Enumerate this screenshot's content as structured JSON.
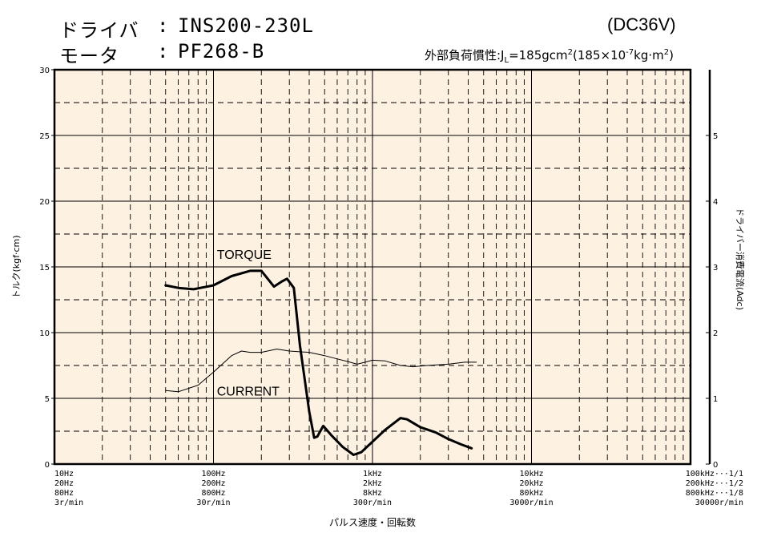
{
  "header": {
    "driver_label": "ドライバ",
    "driver_value": "INS200-230L",
    "motor_label": "モータ",
    "motor_value": "PF268-B",
    "sep": ":",
    "voltage": "(DC36V)",
    "inertia_prefix": "外部負荷慣性:J",
    "inertia_sub": "L",
    "inertia_mid": "=185gcm",
    "inertia_sup1": "2",
    "inertia_paren": "(185×10",
    "inertia_sup2": "-7",
    "inertia_end": "kg·m",
    "inertia_sup3": "2",
    "inertia_close": ")"
  },
  "chart_data": {
    "type": "line",
    "x_scale": "log",
    "xlim": [
      10,
      100000
    ],
    "ylim": [
      0,
      30
    ],
    "y2lim": [
      0,
      6
    ],
    "ylabel": "トルク(kgf·cm)",
    "y2label": "ドライバー消費電流(Adc)",
    "xlabel": "パルス速度・回転数",
    "y_ticks": [
      "0",
      "5",
      "10",
      "15",
      "20",
      "25",
      "30"
    ],
    "y2_ticks": [
      "0",
      "1",
      "2",
      "3",
      "4",
      "5"
    ],
    "x_tick_labels": [
      {
        "x": 10,
        "lines": [
          "10Hz",
          "20Hz",
          "80Hz",
          "3r/min"
        ],
        "align": "start"
      },
      {
        "x": 100,
        "lines": [
          "100Hz",
          "200Hz",
          "800Hz",
          "30r/min"
        ],
        "align": "middle"
      },
      {
        "x": 1000,
        "lines": [
          "1kHz",
          "2kHz",
          "8kHz",
          "300r/min"
        ],
        "align": "middle"
      },
      {
        "x": 10000,
        "lines": [
          "10kHz",
          "20kHz",
          "80kHz",
          "3000r/min"
        ],
        "align": "middle"
      },
      {
        "x": 100000,
        "lines": [
          "100kHz···1/1",
          "200kHz···1/2",
          "800kHz···1/8",
          "30000r/min"
        ],
        "align": "end"
      }
    ],
    "series": [
      {
        "name": "TORQUE",
        "axis": "left",
        "points": [
          [
            50,
            13.6
          ],
          [
            60,
            13.4
          ],
          [
            75,
            13.3
          ],
          [
            100,
            13.6
          ],
          [
            130,
            14.3
          ],
          [
            170,
            14.7
          ],
          [
            200,
            14.7
          ],
          [
            240,
            13.5
          ],
          [
            270,
            13.9
          ],
          [
            290,
            14.1
          ],
          [
            320,
            13.4
          ],
          [
            350,
            9.0
          ],
          [
            400,
            4.0
          ],
          [
            430,
            2.0
          ],
          [
            450,
            2.1
          ],
          [
            490,
            2.9
          ],
          [
            550,
            2.2
          ],
          [
            650,
            1.3
          ],
          [
            760,
            0.7
          ],
          [
            850,
            0.9
          ],
          [
            1000,
            1.7
          ],
          [
            1200,
            2.6
          ],
          [
            1500,
            3.5
          ],
          [
            1650,
            3.4
          ],
          [
            2000,
            2.8
          ],
          [
            2500,
            2.4
          ],
          [
            3000,
            1.9
          ],
          [
            3600,
            1.5
          ],
          [
            4200,
            1.2
          ]
        ]
      },
      {
        "name": "CURRENT",
        "axis": "right",
        "points": [
          [
            50,
            1.12
          ],
          [
            60,
            1.1
          ],
          [
            80,
            1.2
          ],
          [
            100,
            1.4
          ],
          [
            130,
            1.65
          ],
          [
            150,
            1.72
          ],
          [
            170,
            1.7
          ],
          [
            200,
            1.7
          ],
          [
            250,
            1.75
          ],
          [
            300,
            1.72
          ],
          [
            400,
            1.7
          ],
          [
            500,
            1.65
          ],
          [
            600,
            1.6
          ],
          [
            700,
            1.56
          ],
          [
            800,
            1.52
          ],
          [
            900,
            1.55
          ],
          [
            1000,
            1.58
          ],
          [
            1200,
            1.57
          ],
          [
            1500,
            1.5
          ],
          [
            1800,
            1.48
          ],
          [
            2200,
            1.5
          ],
          [
            3000,
            1.52
          ],
          [
            3800,
            1.55
          ],
          [
            4500,
            1.55
          ]
        ]
      }
    ],
    "annotations": [
      {
        "text": "TORQUE",
        "x": 105,
        "y": 15.6
      },
      {
        "text": "CURRENT",
        "x": 105,
        "y": 5.2
      }
    ],
    "grid": true
  }
}
